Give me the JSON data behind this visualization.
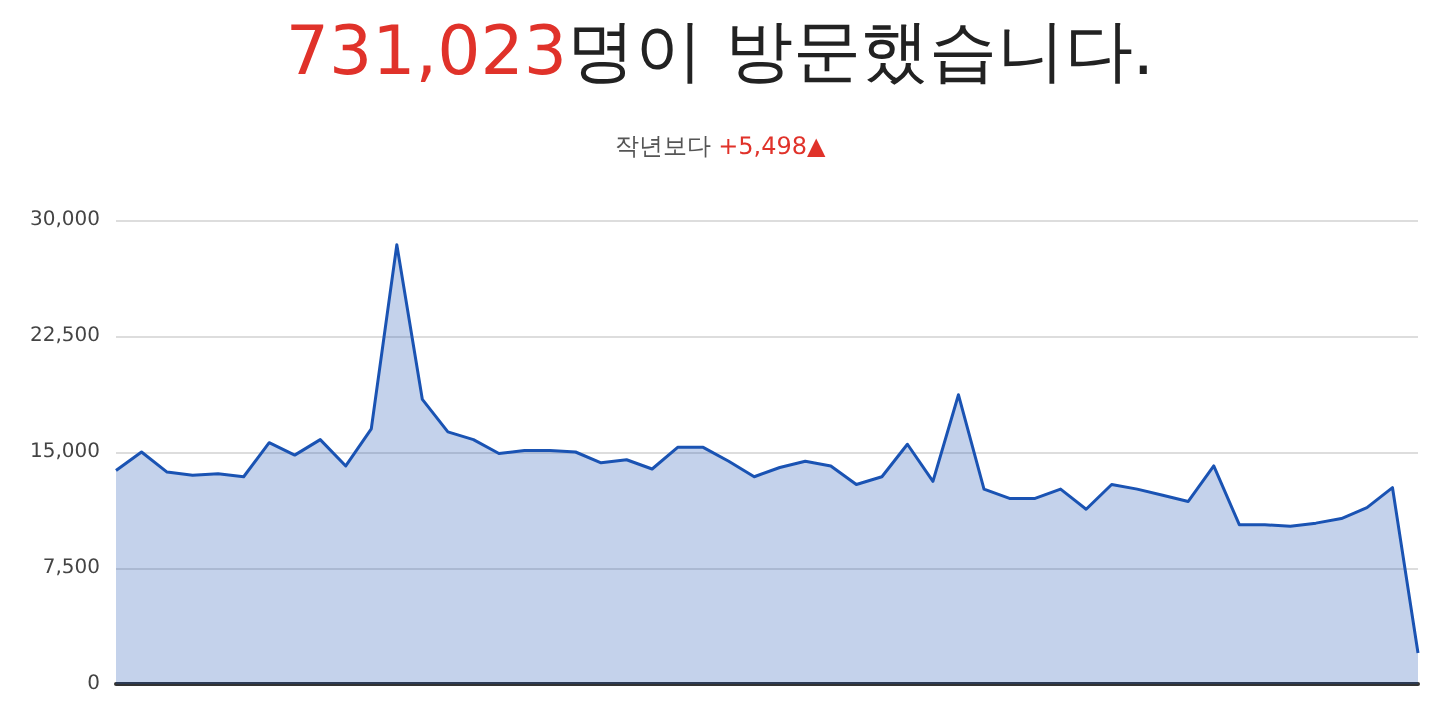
{
  "chart_data": {
    "type": "area",
    "title": "731,023명이 방문했습니다.",
    "subtitle": "작년보다 +5,498▲",
    "categories": [
      null,
      null,
      null,
      null,
      null,
      null,
      null,
      null,
      null,
      null,
      null,
      null,
      null,
      null,
      null,
      null,
      null,
      null,
      null,
      null,
      null,
      null,
      null,
      null,
      null,
      null,
      null,
      null,
      null,
      null,
      null,
      null,
      null,
      null,
      null,
      null,
      null,
      null,
      null,
      null,
      null,
      null,
      null,
      null,
      null,
      null,
      null,
      null,
      null,
      null,
      null,
      null
    ],
    "series": [
      {
        "color": "#1a53b3",
        "values": [
          13800,
          15000,
          13700,
          13500,
          13600,
          13400,
          15600,
          14800,
          15800,
          14100,
          16500,
          28400,
          18400,
          16300,
          15800,
          14900,
          15100,
          15100,
          15000,
          14300,
          14500,
          13900,
          15300,
          15300,
          14400,
          13400,
          14000,
          14400,
          14100,
          12900,
          13400,
          15500,
          13100,
          18700,
          12600,
          12000,
          12000,
          12600,
          11300,
          12900,
          12600,
          12200,
          11800,
          14100,
          10300,
          10300,
          10200,
          10400,
          10700,
          11400,
          12700,
          2000
        ]
      }
    ],
    "ylim": [
      0,
      30000
    ],
    "yticks": [
      0,
      {
        "value": 7500,
        "label": "7,500"
      },
      {
        "value": 15000,
        "label": "15,000"
      },
      {
        "value": 22500,
        "label": "22,500"
      },
      {
        "value": 30000,
        "label": "30,000"
      }
    ],
    "grid": "y",
    "marker": "none",
    "line_style": "solid"
  }
}
